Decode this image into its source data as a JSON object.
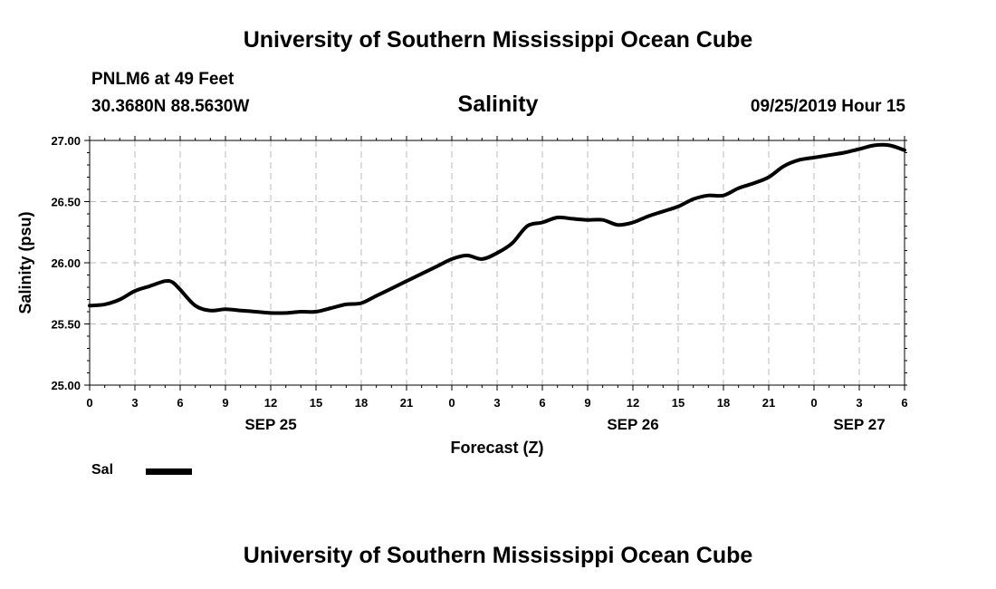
{
  "header": {
    "title": "University of Southern Mississippi Ocean Cube",
    "station": "PNLM6 at 49 Feet",
    "location": "30.3680N 88.5630W",
    "variable": "Salinity",
    "timestamp": "09/25/2019 Hour 15"
  },
  "footer": {
    "title": "University of Southern Mississippi Ocean Cube"
  },
  "legend": {
    "entries": [
      {
        "label": "Sal",
        "color": "#000000"
      }
    ]
  },
  "chart_data": {
    "type": "line",
    "title": "Salinity",
    "xlabel": "Forecast (Z)",
    "ylabel": "Salinity (psu)",
    "ylim": [
      25.0,
      27.0
    ],
    "xlim": [
      0,
      54
    ],
    "y_ticks": [
      "25.00",
      "25.50",
      "26.00",
      "26.50",
      "27.00"
    ],
    "x_ticks": [
      "0",
      "3",
      "6",
      "9",
      "12",
      "15",
      "18",
      "21",
      "0",
      "3",
      "6",
      "9",
      "12",
      "15",
      "18",
      "21",
      "0",
      "3",
      "6"
    ],
    "x_tick_hours": [
      0,
      3,
      6,
      9,
      12,
      15,
      18,
      21,
      24,
      27,
      30,
      33,
      36,
      39,
      42,
      45,
      48,
      51,
      54
    ],
    "date_labels": [
      {
        "label": "SEP 25",
        "hour": 12
      },
      {
        "label": "SEP 26",
        "hour": 36
      },
      {
        "label": "SEP 27",
        "hour": 51
      }
    ],
    "grid": true,
    "line_color": "#000000",
    "series": [
      {
        "name": "Sal",
        "x": [
          0,
          1,
          2,
          3,
          4,
          5,
          5.5,
          6,
          7,
          8,
          9,
          10,
          11,
          12,
          13,
          14,
          15,
          16,
          17,
          18,
          19,
          20,
          21,
          22,
          23,
          24,
          25,
          26,
          27,
          28,
          29,
          30,
          31,
          32,
          33,
          34,
          35,
          36,
          37,
          38,
          39,
          40,
          41,
          42,
          43,
          44,
          45,
          46,
          47,
          48,
          49,
          50,
          51,
          52,
          53,
          54
        ],
        "values": [
          25.65,
          25.66,
          25.7,
          25.77,
          25.81,
          25.85,
          25.84,
          25.78,
          25.65,
          25.61,
          25.62,
          25.61,
          25.6,
          25.59,
          25.59,
          25.6,
          25.6,
          25.63,
          25.66,
          25.67,
          25.73,
          25.79,
          25.85,
          25.91,
          25.97,
          26.03,
          26.06,
          26.03,
          26.08,
          26.16,
          26.3,
          26.33,
          26.37,
          26.36,
          26.35,
          26.35,
          26.31,
          26.33,
          26.38,
          26.42,
          26.46,
          26.52,
          26.55,
          26.55,
          26.61,
          26.65,
          26.7,
          26.79,
          26.84,
          26.86,
          26.88,
          26.9,
          26.93,
          26.96,
          26.96,
          26.92
        ]
      }
    ]
  }
}
